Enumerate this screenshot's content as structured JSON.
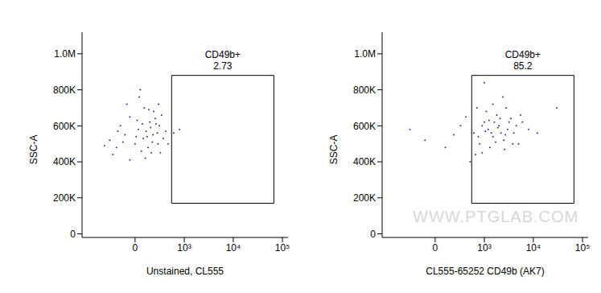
{
  "chart_data": [
    {
      "type": "scatter",
      "x_label": "Unstained, CL555",
      "y_label": "SSC-A",
      "color": "#3a2a8a",
      "marker": "dot",
      "xlim": [
        -1200,
        130000
      ],
      "xticks": [
        0,
        {
          "value": 1000,
          "label": "10³"
        },
        {
          "value": 10000,
          "label": "10⁴"
        },
        {
          "value": 100000,
          "label": "10⁵"
        }
      ],
      "ylim": [
        -20000,
        1120000
      ],
      "yticks": [
        0,
        {
          "value": 200000,
          "label": "200K"
        },
        {
          "value": 400000,
          "label": "400K"
        },
        {
          "value": 600000,
          "label": "600K"
        },
        {
          "value": 800000,
          "label": "800K"
        },
        {
          "value": 1000000,
          "label": "1.0M"
        }
      ],
      "x": [
        -300,
        -200,
        -150,
        -100,
        -50,
        0,
        30,
        60,
        90,
        120,
        150,
        180,
        200,
        250,
        280,
        300,
        350,
        -250,
        -80,
        40,
        100,
        160,
        220,
        260,
        320,
        -180,
        10,
        70,
        130,
        190,
        400,
        450,
        600,
        -400,
        -50,
        80,
        140,
        230,
        20,
        110,
        -120,
        170,
        50,
        270,
        800
      ],
      "values": [
        520000,
        480000,
        600000,
        550000,
        650000,
        500000,
        580000,
        460000,
        700000,
        540000,
        620000,
        510000,
        680000,
        560000,
        600000,
        450000,
        530000,
        440000,
        720000,
        760000,
        420000,
        590000,
        640000,
        500000,
        660000,
        570000,
        540000,
        610000,
        480000,
        550000,
        570000,
        500000,
        560000,
        490000,
        410000,
        530000,
        690000,
        610000,
        630000,
        570000,
        510000,
        450000,
        800000,
        720000,
        580000
      ],
      "gate": {
        "name": "CD49b+",
        "percent": 2.73,
        "xlim": [
          540,
          67000
        ],
        "ylim": [
          170000,
          880000
        ]
      }
    },
    {
      "type": "scatter",
      "x_label": "CL555-65252 CD49b (AK7)",
      "y_label": "SSC-A",
      "color": "#3a2a8a",
      "marker": "dot",
      "annotations": [
        "WWW.PTGLAB.COM"
      ],
      "xlim": [
        -1200,
        130000
      ],
      "xticks": [
        0,
        {
          "value": 1000,
          "label": "10³"
        },
        {
          "value": 10000,
          "label": "10⁴"
        },
        {
          "value": 100000,
          "label": "10⁵"
        }
      ],
      "ylim": [
        -20000,
        1120000
      ],
      "yticks": [
        0,
        {
          "value": 200000,
          "label": "200K"
        },
        {
          "value": 400000,
          "label": "400K"
        },
        {
          "value": 600000,
          "label": "600K"
        },
        {
          "value": 800000,
          "label": "800K"
        },
        {
          "value": 1000000,
          "label": "1.0M"
        }
      ],
      "x": [
        200,
        300,
        100,
        -100,
        400,
        600,
        800,
        1000,
        1200,
        1500,
        1800,
        2000,
        2500,
        3000,
        3500,
        4000,
        5000,
        6000,
        8000,
        12000,
        700,
        900,
        1100,
        1300,
        1600,
        2200,
        2800,
        900,
        1400,
        1700,
        2100,
        2600,
        3200,
        4500,
        750,
        1050,
        1900,
        2400,
        650,
        1250,
        30000,
        500,
        3800,
        1000,
        -300,
        2700,
        1500,
        5500
      ],
      "values": [
        550000,
        600000,
        480000,
        520000,
        650000,
        560000,
        500000,
        620000,
        580000,
        540000,
        660000,
        600000,
        520000,
        580000,
        640000,
        560000,
        500000,
        620000,
        580000,
        560000,
        700000,
        450000,
        680000,
        480000,
        620000,
        560000,
        700000,
        600000,
        560000,
        510000,
        640000,
        470000,
        620000,
        600000,
        540000,
        570000,
        590000,
        760000,
        440000,
        630000,
        700000,
        400000,
        500000,
        840000,
        580000,
        550000,
        720000,
        660000
      ],
      "gate": {
        "name": "CD49b+",
        "percent": 85.2,
        "xlim": [
          540,
          67000
        ],
        "ylim": [
          170000,
          880000
        ]
      }
    }
  ]
}
